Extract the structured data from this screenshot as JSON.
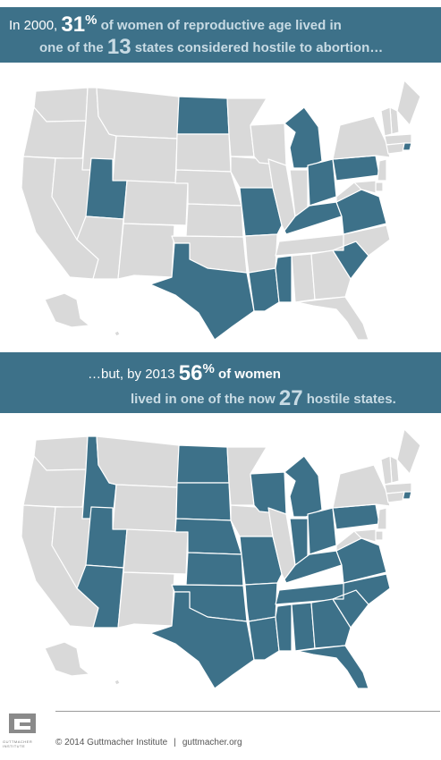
{
  "banner1": {
    "prefix": "In 2000,",
    "pct": "31",
    "pct_sign": "%",
    "line1_rest": " of women of reproductive age lived in",
    "line2_a": "one of the",
    "count": "13",
    "line2_b": " states considered hostile to abortion…"
  },
  "banner2": {
    "line1_a": "…but, by 2013",
    "pct": "56",
    "pct_sign": "%",
    "line1_b": " of women",
    "line2_a": "lived in one of the now",
    "count": "27",
    "line2_b": " hostile states."
  },
  "maps": {
    "map_2000": {
      "hostile_states": [
        "UT",
        "ND",
        "MO",
        "TX",
        "LA",
        "MS",
        "KY",
        "MI",
        "OH",
        "PA",
        "VA",
        "SC",
        "RI"
      ]
    },
    "map_2013": {
      "hostile_states": [
        "ID",
        "UT",
        "AZ",
        "ND",
        "SD",
        "NE",
        "KS",
        "OK",
        "TX",
        "MO",
        "AR",
        "LA",
        "WI",
        "MI",
        "IN",
        "OH",
        "KY",
        "TN",
        "MS",
        "AL",
        "GA",
        "FL",
        "SC",
        "NC",
        "VA",
        "PA",
        "RI"
      ]
    }
  },
  "colors": {
    "hostile": "#3d7189",
    "other": "#d9d9d9",
    "banner": "#3d7189",
    "accent_text": "#c8dbe4"
  },
  "footer": {
    "copyright": "© 2014 Guttmacher Institute",
    "separator": "|",
    "url": "guttmacher.org",
    "logo_text": "GUTTMACHER INSTITUTE"
  }
}
